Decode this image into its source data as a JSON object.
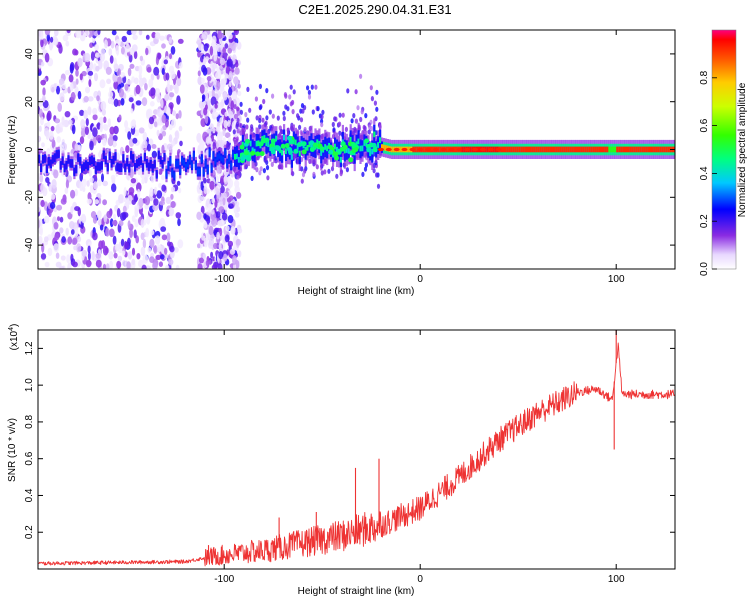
{
  "title": "C2E1.2025.290.04.31.E31",
  "spectrogram": {
    "type": "heatmap",
    "xlabel": "Height of straight line (km)",
    "ylabel": "Frequency (Hz)",
    "xlim": [
      -195,
      130
    ],
    "ylim": [
      -50,
      50
    ],
    "xticks": [
      -100,
      0,
      100
    ],
    "yticks": [
      -40,
      -20,
      0,
      20,
      40
    ],
    "ridge": [
      {
        "x": -195,
        "y": -5
      },
      {
        "x": -150,
        "y": -6
      },
      {
        "x": -130,
        "y": -7
      },
      {
        "x": -110,
        "y": -6
      },
      {
        "x": -95,
        "y": -3
      },
      {
        "x": -80,
        "y": 2
      },
      {
        "x": -60,
        "y": 1
      },
      {
        "x": -40,
        "y": -1
      },
      {
        "x": -25,
        "y": 2
      },
      {
        "x": -15,
        "y": 0
      },
      {
        "x": 0,
        "y": 0
      },
      {
        "x": 130,
        "y": 0
      }
    ]
  },
  "colorbar": {
    "label": "Normalized spectral amplitude",
    "range": [
      0,
      1
    ],
    "ticks": [
      "0.0",
      "0.2",
      "0.4",
      "0.6",
      "0.8"
    ],
    "tick_values": [
      0,
      0.2,
      0.4,
      0.6,
      0.8
    ]
  },
  "snr_plot": {
    "type": "line",
    "xlabel": "Height of straight line (km)",
    "ylabel": "SNR (10 * v/v)",
    "scale_label": "(x10",
    "scale_exp": "4",
    "scale_close": ")",
    "xlim": [
      -195,
      130
    ],
    "ylim": [
      0,
      1.3
    ],
    "xticks": [
      -100,
      0,
      100
    ],
    "yticks": [
      "0.2",
      "0.4",
      "0.6",
      "0.8",
      "1.0",
      "1.2"
    ],
    "ytick_values": [
      0.2,
      0.4,
      0.6,
      0.8,
      1.0,
      1.2
    ],
    "color": "#ee3333",
    "trend": [
      {
        "x": -195,
        "y": 0.03
      },
      {
        "x": -120,
        "y": 0.04
      },
      {
        "x": -105,
        "y": 0.07
      },
      {
        "x": -80,
        "y": 0.1
      },
      {
        "x": -60,
        "y": 0.14
      },
      {
        "x": -40,
        "y": 0.18
      },
      {
        "x": -20,
        "y": 0.24
      },
      {
        "x": 0,
        "y": 0.33
      },
      {
        "x": 20,
        "y": 0.5
      },
      {
        "x": 40,
        "y": 0.7
      },
      {
        "x": 60,
        "y": 0.85
      },
      {
        "x": 80,
        "y": 0.96
      },
      {
        "x": 90,
        "y": 0.98
      },
      {
        "x": 98,
        "y": 0.92
      },
      {
        "x": 101,
        "y": 1.22
      },
      {
        "x": 103,
        "y": 0.95
      },
      {
        "x": 130,
        "y": 0.95
      }
    ],
    "spikes": [
      {
        "x": -108,
        "y": 0.13
      },
      {
        "x": -72,
        "y": 0.28
      },
      {
        "x": -53,
        "y": 0.31
      },
      {
        "x": -33,
        "y": 0.55
      },
      {
        "x": -21,
        "y": 0.6
      },
      {
        "x": 100,
        "y": 1.3
      },
      {
        "x": 99,
        "y": 0.65
      }
    ]
  }
}
